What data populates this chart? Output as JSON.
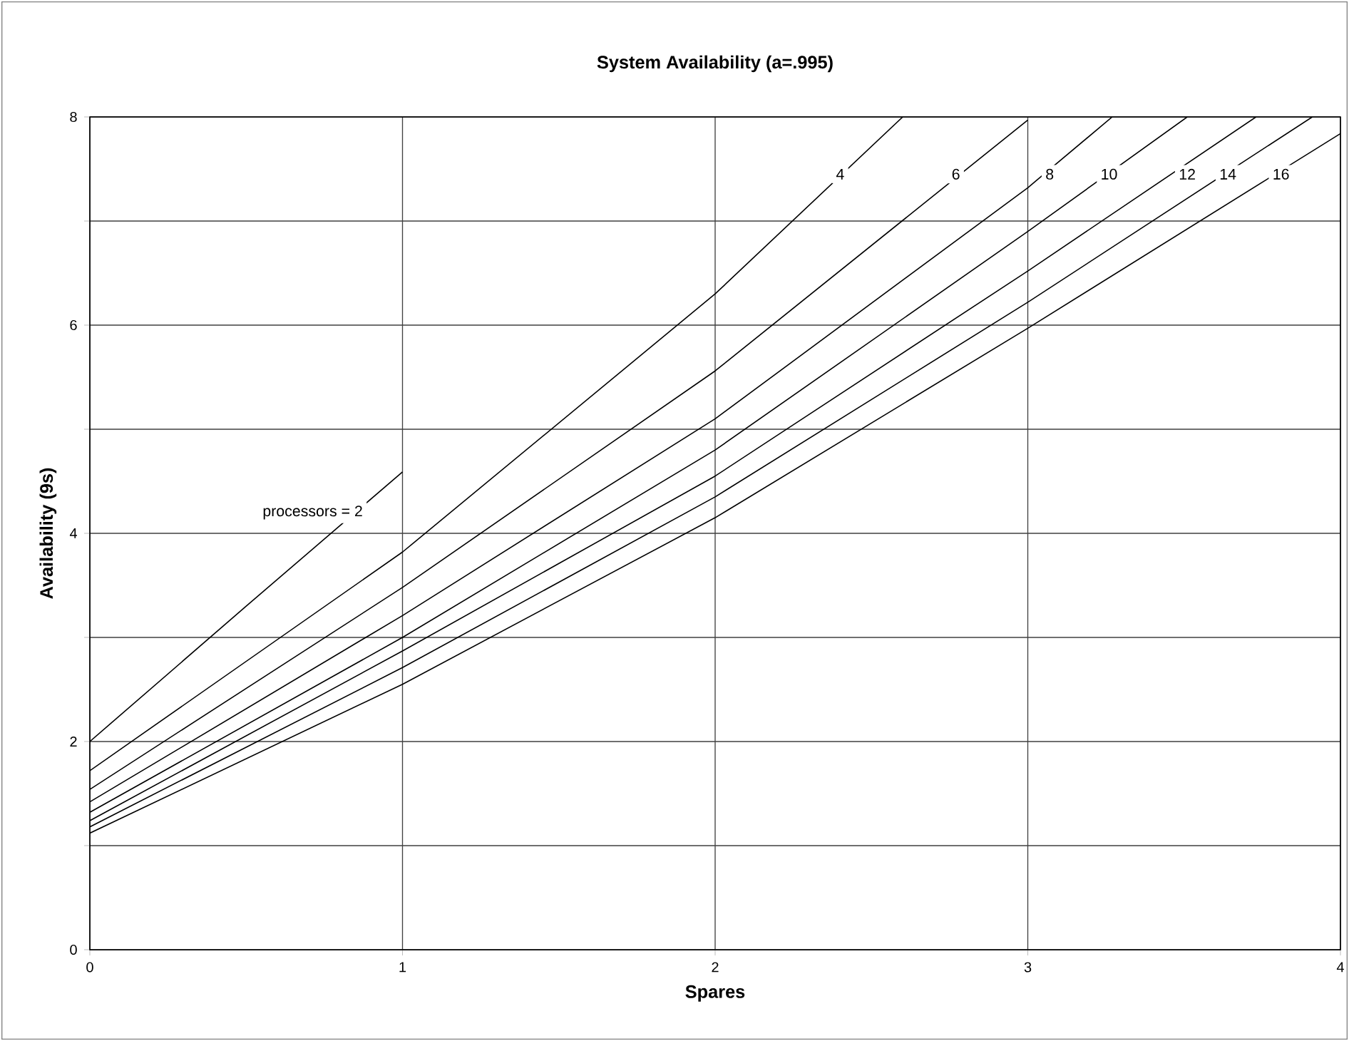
{
  "chart_data": {
    "type": "line",
    "title": "System Availability (a=.995)",
    "xlabel": "Spares",
    "ylabel": "Availability (9s)",
    "xlim": [
      0,
      4
    ],
    "ylim": [
      0,
      8
    ],
    "xticks": [
      0,
      1,
      2,
      3,
      4
    ],
    "yticks": [
      0,
      {
        "value": 1,
        "label": null
      },
      2,
      {
        "value": 3,
        "label": null
      },
      4,
      {
        "value": 5,
        "label": null
      },
      6,
      {
        "value": 7,
        "label": null
      },
      8
    ],
    "grid": true,
    "marker": "none",
    "line_style": "solid",
    "series": [
      {
        "color": "#000000",
        "x": [
          0,
          0.5,
          1
        ],
        "values": [
          2.0,
          3.3,
          4.59
        ]
      },
      {
        "color": "#000000",
        "x": [
          0,
          1,
          2,
          2.6
        ],
        "values": [
          1.72,
          3.82,
          6.3,
          8.0
        ]
      },
      {
        "color": "#000000",
        "x": [
          0,
          1,
          2,
          3
        ],
        "values": [
          1.54,
          3.48,
          5.56,
          7.97
        ]
      },
      {
        "color": "#000000",
        "x": [
          0,
          1,
          2,
          3,
          3.27
        ],
        "values": [
          1.42,
          3.21,
          5.1,
          7.32,
          8.0
        ]
      },
      {
        "color": "#000000",
        "x": [
          0,
          1,
          2,
          3,
          3.51
        ],
        "values": [
          1.32,
          3.0,
          4.8,
          6.9,
          8.0
        ]
      },
      {
        "color": "#000000",
        "x": [
          0,
          1,
          2,
          3,
          3.73
        ],
        "values": [
          1.24,
          2.87,
          4.55,
          6.52,
          8.0
        ]
      },
      {
        "color": "#000000",
        "x": [
          0,
          1,
          2,
          3,
          3.91
        ],
        "values": [
          1.18,
          2.71,
          4.35,
          6.22,
          8.0
        ]
      },
      {
        "color": "#000000",
        "x": [
          0,
          1,
          2,
          3,
          4
        ],
        "values": [
          1.12,
          2.55,
          4.15,
          5.97,
          7.84
        ]
      }
    ],
    "annotations": [
      {
        "text": "processors = 2",
        "x": 0.85,
        "y": 4.2
      },
      {
        "text": "4",
        "x": 2.4,
        "y": 7.45
      },
      {
        "text": "6",
        "x": 2.77,
        "y": 7.45
      },
      {
        "text": "8",
        "x": 3.07,
        "y": 7.45
      },
      {
        "text": "10",
        "x": 3.26,
        "y": 7.45
      },
      {
        "text": "12",
        "x": 3.51,
        "y": 7.45
      },
      {
        "text": "14",
        "x": 3.64,
        "y": 7.45
      },
      {
        "text": "16",
        "x": 3.81,
        "y": 7.45
      }
    ]
  }
}
